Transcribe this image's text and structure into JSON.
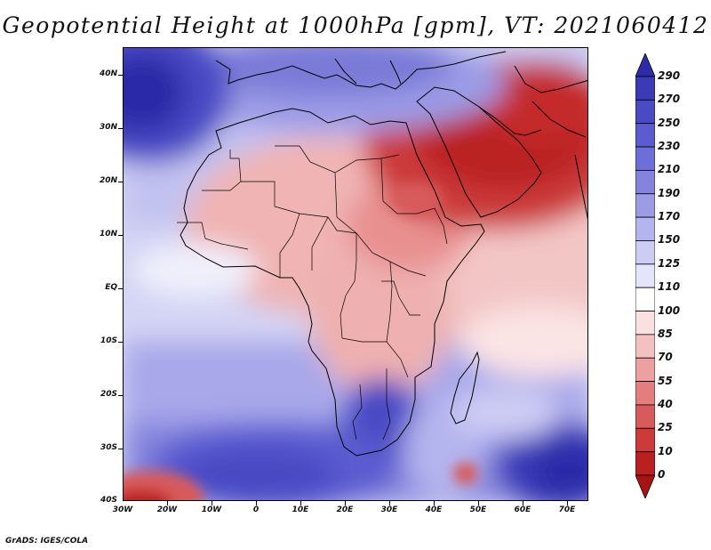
{
  "title": "Geopotential Height at 1000hPa [gpm], VT: 2021060412",
  "credit": "GrADS: IGES/COLA",
  "axes": {
    "lat_labels": [
      "40N",
      "30N",
      "20N",
      "10N",
      "EQ",
      "10S",
      "20S",
      "30S",
      "40S"
    ],
    "lat_values": [
      40,
      30,
      20,
      10,
      0,
      -10,
      -20,
      -30,
      -40
    ],
    "lon_labels": [
      "30W",
      "20W",
      "10W",
      "0",
      "10E",
      "20E",
      "30E",
      "40E",
      "50E",
      "60E",
      "70E"
    ],
    "lon_values": [
      -30,
      -20,
      -10,
      0,
      10,
      20,
      30,
      40,
      50,
      60,
      70
    ],
    "lon_range": [
      -30,
      75
    ],
    "lat_range": [
      -40,
      45
    ]
  },
  "colorbar": {
    "labels": [
      "290",
      "270",
      "250",
      "230",
      "210",
      "190",
      "170",
      "150",
      "125",
      "110",
      "100",
      "85",
      "70",
      "55",
      "40",
      "25",
      "10",
      "0"
    ],
    "colors": [
      "#2c2ca8",
      "#3b3bb8",
      "#4a4ac4",
      "#5c5cd0",
      "#6e6ed8",
      "#8484df",
      "#9b9be6",
      "#b4b4ee",
      "#ccccf4",
      "#e4e4fa",
      "#ffffff",
      "#fae0e0",
      "#f4c0c0",
      "#eda0a0",
      "#e47e7e",
      "#d85a5a",
      "#cc3a3a",
      "#bb2020",
      "#a81414"
    ]
  },
  "features": {
    "high_pressure_blobs": [
      "north-atlantic-high",
      "south-atlantic-high",
      "south-indian-high"
    ],
    "low_pressure_blobs": [
      "arabian-heat-low",
      "sahara-heat-low",
      "southwest-corner-low",
      "madagascar-south-low"
    ]
  }
}
